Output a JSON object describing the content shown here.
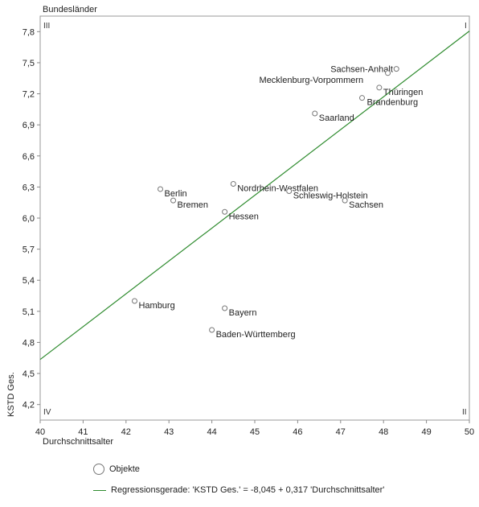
{
  "chart_data": {
    "type": "scatter",
    "title": "Bundesländer",
    "xlabel": "Durchschnittsalter",
    "ylabel": "KSTD Ges.",
    "xlim": [
      40,
      50
    ],
    "ylim": [
      4.05,
      7.95
    ],
    "x_ticks": [
      "40",
      "41",
      "42",
      "43",
      "44",
      "45",
      "46",
      "47",
      "48",
      "49",
      "50"
    ],
    "y_ticks": [
      "4,2",
      "4,5",
      "4,8",
      "5,1",
      "5,4",
      "5,7",
      "6,0",
      "6,3",
      "6,6",
      "6,9",
      "7,2",
      "7,5",
      "7,8"
    ],
    "quadrant_labels": {
      "top_left": "III",
      "top_right": "I",
      "bottom_left": "IV",
      "bottom_right": "II"
    },
    "grid": false,
    "points": [
      {
        "label": "Sachsen-Anhalt",
        "x": 48.3,
        "y": 7.44
      },
      {
        "label": "Mecklenburg-Vorpommern",
        "x": 48.1,
        "y": 7.4
      },
      {
        "label": "Thüringen",
        "x": 47.9,
        "y": 7.26
      },
      {
        "label": "Brandenburg",
        "x": 47.5,
        "y": 7.16
      },
      {
        "label": "Saarland",
        "x": 46.4,
        "y": 7.01
      },
      {
        "label": "Nordrhein-Westfalen",
        "x": 44.5,
        "y": 6.33
      },
      {
        "label": "Schleswig-Holstein",
        "x": 45.8,
        "y": 6.26
      },
      {
        "label": "Sachsen",
        "x": 47.1,
        "y": 6.17
      },
      {
        "label": "Berlin",
        "x": 42.8,
        "y": 6.28
      },
      {
        "label": "Bremen",
        "x": 43.1,
        "y": 6.17
      },
      {
        "label": "Hessen",
        "x": 44.3,
        "y": 6.06
      },
      {
        "label": "Hamburg",
        "x": 42.2,
        "y": 5.2
      },
      {
        "label": "Bayern",
        "x": 44.3,
        "y": 5.13
      },
      {
        "label": "Baden-Württemberg",
        "x": 44.0,
        "y": 4.92
      }
    ],
    "regression": {
      "intercept": -8.045,
      "slope": 0.317,
      "color": "#2e8b2e"
    },
    "legend": [
      {
        "symbol": "circle",
        "label": "Objekte"
      },
      {
        "symbol": "line",
        "label": "Regressionsgerade: 'KSTD Ges.' = -8,045 + 0,317 'Durchschnittsalter'"
      }
    ]
  }
}
